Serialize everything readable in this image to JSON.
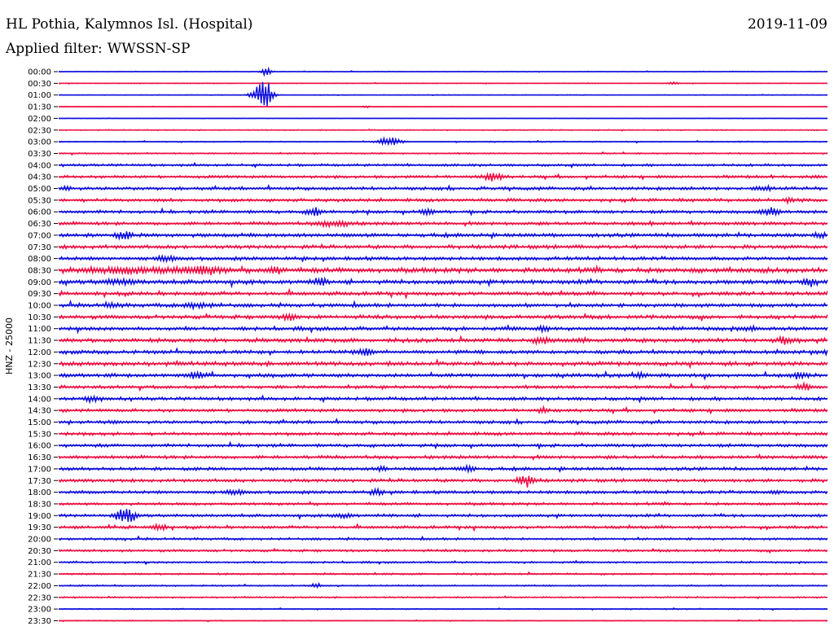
{
  "header": {
    "station": "HL Pothia, Kalymnos Isl. (Hospital)",
    "date": "2019-11-09",
    "filter_label": "Applied filter:",
    "filter_value": "WWSSN-SP"
  },
  "chart_data": {
    "type": "line",
    "title": "HL Pothia, Kalymnos Isl. (Hospital)",
    "ylabel": "HNZ - 25000",
    "colors": [
      "#1010dd",
      "#ee1144"
    ],
    "rows": [
      "00:00",
      "00:30",
      "01:00",
      "01:30",
      "02:00",
      "02:30",
      "03:00",
      "03:30",
      "04:00",
      "04:30",
      "05:00",
      "05:30",
      "06:00",
      "06:30",
      "07:00",
      "07:30",
      "08:00",
      "08:30",
      "09:00",
      "09:30",
      "10:00",
      "10:30",
      "11:00",
      "11:30",
      "12:00",
      "12:30",
      "13:00",
      "13:30",
      "14:00",
      "14:30",
      "15:00",
      "15:30",
      "16:00",
      "16:30",
      "17:00",
      "17:30",
      "18:00",
      "18:30",
      "19:00",
      "19:30",
      "20:00",
      "20:30",
      "21:00",
      "21:30",
      "22:00",
      "22:30",
      "23:00",
      "23:30"
    ],
    "noise": [
      0.08,
      0.07,
      0.06,
      0.05,
      0.05,
      0.1,
      0.12,
      0.15,
      0.25,
      0.3,
      0.35,
      0.35,
      0.35,
      0.35,
      0.4,
      0.4,
      0.4,
      0.55,
      0.45,
      0.4,
      0.4,
      0.4,
      0.4,
      0.45,
      0.4,
      0.45,
      0.4,
      0.35,
      0.35,
      0.35,
      0.35,
      0.35,
      0.35,
      0.35,
      0.35,
      0.35,
      0.35,
      0.3,
      0.3,
      0.3,
      0.25,
      0.25,
      0.2,
      0.2,
      0.15,
      0.15,
      0.12,
      0.1
    ],
    "events": [
      {
        "row": 0,
        "x": 0.27,
        "amp": 1.2,
        "w": 0.006
      },
      {
        "row": 1,
        "x": 0.8,
        "amp": 0.4,
        "w": 0.006
      },
      {
        "row": 2,
        "x": 0.265,
        "amp": 3.5,
        "w": 0.012
      },
      {
        "row": 2,
        "x": 0.27,
        "amp": 2.5,
        "w": 0.004
      },
      {
        "row": 3,
        "x": 0.4,
        "amp": 0.3,
        "w": 0.004
      },
      {
        "row": 6,
        "x": 0.43,
        "amp": 1.2,
        "w": 0.014
      },
      {
        "row": 9,
        "x": 0.565,
        "amp": 1.0,
        "w": 0.012
      },
      {
        "row": 10,
        "x": 0.01,
        "amp": 0.6,
        "w": 0.006
      },
      {
        "row": 10,
        "x": 0.915,
        "amp": 0.6,
        "w": 0.012
      },
      {
        "row": 11,
        "x": 0.95,
        "amp": 0.6,
        "w": 0.006
      },
      {
        "row": 12,
        "x": 0.332,
        "amp": 1.2,
        "w": 0.008
      },
      {
        "row": 12,
        "x": 0.48,
        "amp": 0.6,
        "w": 0.01
      },
      {
        "row": 12,
        "x": 0.925,
        "amp": 1.2,
        "w": 0.01
      },
      {
        "row": 13,
        "x": 0.36,
        "amp": 0.8,
        "w": 0.02
      },
      {
        "row": 13,
        "x": 0.77,
        "amp": 0.9,
        "w": 0.002
      },
      {
        "row": 14,
        "x": 0.085,
        "amp": 0.9,
        "w": 0.01
      },
      {
        "row": 14,
        "x": 0.99,
        "amp": 0.8,
        "w": 0.006
      },
      {
        "row": 16,
        "x": 0.14,
        "amp": 0.7,
        "w": 0.01
      },
      {
        "row": 17,
        "x": 0.1,
        "amp": 0.6,
        "w": 0.07
      },
      {
        "row": 17,
        "x": 0.19,
        "amp": 0.7,
        "w": 0.025
      },
      {
        "row": 17,
        "x": 0.282,
        "amp": 1.0,
        "w": 0.01
      },
      {
        "row": 18,
        "x": 0.08,
        "amp": 0.5,
        "w": 0.02
      },
      {
        "row": 18,
        "x": 0.34,
        "amp": 0.8,
        "w": 0.008
      },
      {
        "row": 18,
        "x": 0.975,
        "amp": 0.8,
        "w": 0.008
      },
      {
        "row": 20,
        "x": 0.07,
        "amp": 0.6,
        "w": 0.01
      },
      {
        "row": 20,
        "x": 0.18,
        "amp": 0.5,
        "w": 0.02
      },
      {
        "row": 21,
        "x": 0.3,
        "amp": 0.6,
        "w": 0.01
      },
      {
        "row": 22,
        "x": 0.63,
        "amp": 0.6,
        "w": 0.008
      },
      {
        "row": 22,
        "x": 0.9,
        "amp": 0.5,
        "w": 0.01
      },
      {
        "row": 23,
        "x": 0.63,
        "amp": 0.8,
        "w": 0.01
      },
      {
        "row": 23,
        "x": 0.68,
        "amp": 0.5,
        "w": 0.01
      },
      {
        "row": 23,
        "x": 0.945,
        "amp": 0.7,
        "w": 0.01
      },
      {
        "row": 24,
        "x": 0.4,
        "amp": 0.9,
        "w": 0.01
      },
      {
        "row": 24,
        "x": 1.0,
        "amp": 0.7,
        "w": 0.004
      },
      {
        "row": 26,
        "x": 0.18,
        "amp": 0.8,
        "w": 0.01
      },
      {
        "row": 26,
        "x": 0.755,
        "amp": 0.6,
        "w": 0.008
      },
      {
        "row": 26,
        "x": 0.962,
        "amp": 0.8,
        "w": 0.008
      },
      {
        "row": 27,
        "x": 0.97,
        "amp": 0.9,
        "w": 0.008
      },
      {
        "row": 28,
        "x": 0.045,
        "amp": 0.8,
        "w": 0.01
      },
      {
        "row": 29,
        "x": 0.63,
        "amp": 0.7,
        "w": 0.006
      },
      {
        "row": 34,
        "x": 0.42,
        "amp": 0.6,
        "w": 0.006
      },
      {
        "row": 34,
        "x": 0.53,
        "amp": 0.8,
        "w": 0.01
      },
      {
        "row": 35,
        "x": 0.608,
        "amp": 1.6,
        "w": 0.01
      },
      {
        "row": 36,
        "x": 0.23,
        "amp": 0.6,
        "w": 0.01
      },
      {
        "row": 36,
        "x": 0.415,
        "amp": 0.8,
        "w": 0.006
      },
      {
        "row": 36,
        "x": 0.93,
        "amp": 0.5,
        "w": 0.006
      },
      {
        "row": 38,
        "x": 0.087,
        "amp": 2.2,
        "w": 0.012
      },
      {
        "row": 38,
        "x": 0.37,
        "amp": 0.5,
        "w": 0.012
      },
      {
        "row": 39,
        "x": 0.13,
        "amp": 0.7,
        "w": 0.01
      },
      {
        "row": 44,
        "x": 0.335,
        "amp": 0.7,
        "w": 0.006
      }
    ]
  }
}
